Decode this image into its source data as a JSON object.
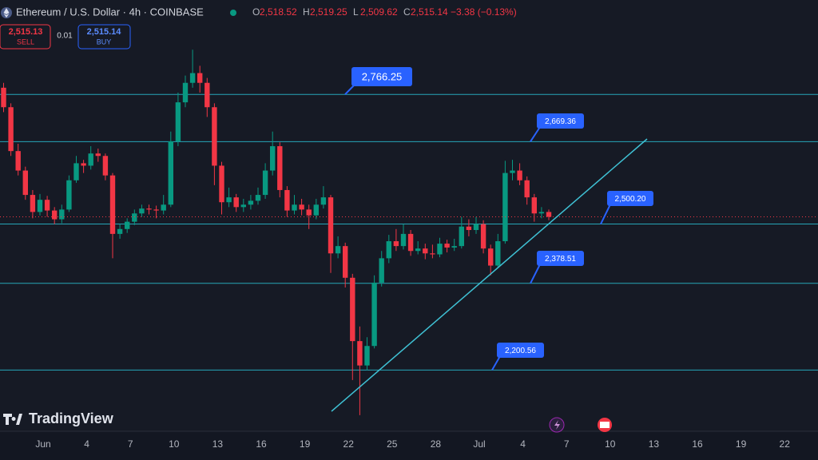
{
  "header": {
    "symbol": "Ethereum / U.S. Dollar · 4h · COINBASE",
    "ohlc": [
      {
        "label": "O",
        "value": "2,518.52"
      },
      {
        "label": "H",
        "value": "2,519.25"
      },
      {
        "label": "L",
        "value": "2,509.62"
      },
      {
        "label": "C",
        "value": "2,515.14"
      }
    ],
    "change": "−3.38 (−0.13%)"
  },
  "trade": {
    "sell_price": "2,515.13",
    "sell_label": "SELL",
    "spread": "0.01",
    "buy_price": "2,515.14",
    "buy_label": "BUY"
  },
  "branding": "TradingView",
  "chart_data": {
    "type": "candlestick",
    "ylim": [
      2075,
      2960
    ],
    "up_color": "#089981",
    "down_color": "#f23645",
    "level_color": "#26a6b8",
    "categories": [
      "Jun",
      "4",
      "7",
      "10",
      "13",
      "16",
      "19",
      "22",
      "25",
      "28",
      "Jul",
      "4",
      "7",
      "10",
      "13",
      "16",
      "19",
      "22"
    ],
    "levels": [
      {
        "value": 2766.25,
        "label": "2,766.25"
      },
      {
        "value": 2669.36,
        "label": "2,669.36"
      },
      {
        "value": 2500.2,
        "label": "2,500.20"
      },
      {
        "value": 2378.51,
        "label": "2,378.51"
      },
      {
        "value": 2200.56,
        "label": "2,200.56"
      }
    ],
    "candles": [
      [
        2780,
        2790,
        2730,
        2740
      ],
      [
        2740,
        2748,
        2640,
        2650
      ],
      [
        2650,
        2665,
        2600,
        2610
      ],
      [
        2610,
        2618,
        2550,
        2560
      ],
      [
        2560,
        2570,
        2512,
        2525
      ],
      [
        2525,
        2562,
        2518,
        2550
      ],
      [
        2550,
        2558,
        2515,
        2528
      ],
      [
        2528,
        2535,
        2500,
        2510
      ],
      [
        2510,
        2540,
        2502,
        2530
      ],
      [
        2530,
        2600,
        2525,
        2590
      ],
      [
        2590,
        2640,
        2585,
        2625
      ],
      [
        2625,
        2632,
        2605,
        2620
      ],
      [
        2620,
        2660,
        2612,
        2645
      ],
      [
        2645,
        2655,
        2628,
        2640
      ],
      [
        2640,
        2645,
        2590,
        2600
      ],
      [
        2600,
        2605,
        2430,
        2480
      ],
      [
        2480,
        2500,
        2470,
        2490
      ],
      [
        2490,
        2512,
        2482,
        2505
      ],
      [
        2505,
        2530,
        2498,
        2522
      ],
      [
        2522,
        2540,
        2515,
        2532
      ],
      [
        2532,
        2540,
        2520,
        2530
      ],
      [
        2530,
        2538,
        2512,
        2528
      ],
      [
        2528,
        2560,
        2520,
        2540
      ],
      [
        2540,
        2690,
        2535,
        2670
      ],
      [
        2670,
        2770,
        2660,
        2750
      ],
      [
        2750,
        2805,
        2740,
        2790
      ],
      [
        2790,
        2858,
        2780,
        2810
      ],
      [
        2810,
        2825,
        2770,
        2790
      ],
      [
        2790,
        2800,
        2720,
        2740
      ],
      [
        2740,
        2748,
        2580,
        2620
      ],
      [
        2620,
        2628,
        2520,
        2545
      ],
      [
        2545,
        2575,
        2535,
        2555
      ],
      [
        2555,
        2562,
        2525,
        2535
      ],
      [
        2535,
        2552,
        2525,
        2540
      ],
      [
        2540,
        2560,
        2530,
        2548
      ],
      [
        2548,
        2575,
        2540,
        2560
      ],
      [
        2560,
        2625,
        2552,
        2610
      ],
      [
        2610,
        2690,
        2600,
        2660
      ],
      [
        2660,
        2668,
        2555,
        2570
      ],
      [
        2570,
        2578,
        2515,
        2528
      ],
      [
        2528,
        2560,
        2520,
        2540
      ],
      [
        2540,
        2552,
        2518,
        2530
      ],
      [
        2530,
        2540,
        2490,
        2518
      ],
      [
        2518,
        2552,
        2510,
        2540
      ],
      [
        2540,
        2578,
        2532,
        2555
      ],
      [
        2555,
        2560,
        2400,
        2440
      ],
      [
        2440,
        2475,
        2430,
        2455
      ],
      [
        2455,
        2462,
        2370,
        2390
      ],
      [
        2390,
        2398,
        2180,
        2260
      ],
      [
        2260,
        2290,
        2108,
        2210
      ],
      [
        2210,
        2268,
        2200,
        2250
      ],
      [
        2250,
        2395,
        2245,
        2380
      ],
      [
        2380,
        2445,
        2372,
        2430
      ],
      [
        2430,
        2478,
        2420,
        2465
      ],
      [
        2465,
        2490,
        2445,
        2455
      ],
      [
        2455,
        2500,
        2448,
        2480
      ],
      [
        2480,
        2488,
        2435,
        2445
      ],
      [
        2445,
        2465,
        2438,
        2450
      ],
      [
        2450,
        2460,
        2428,
        2440
      ],
      [
        2440,
        2458,
        2430,
        2438
      ],
      [
        2438,
        2472,
        2432,
        2460
      ],
      [
        2460,
        2468,
        2442,
        2452
      ],
      [
        2452,
        2470,
        2445,
        2455
      ],
      [
        2455,
        2515,
        2450,
        2495
      ],
      [
        2495,
        2510,
        2475,
        2488
      ],
      [
        2488,
        2515,
        2480,
        2500
      ],
      [
        2500,
        2508,
        2440,
        2450
      ],
      [
        2450,
        2458,
        2395,
        2415
      ],
      [
        2415,
        2480,
        2410,
        2465
      ],
      [
        2465,
        2630,
        2460,
        2605
      ],
      [
        2605,
        2632,
        2590,
        2610
      ],
      [
        2610,
        2625,
        2580,
        2590
      ],
      [
        2590,
        2598,
        2540,
        2555
      ],
      [
        2555,
        2562,
        2505,
        2522
      ],
      [
        2522,
        2535,
        2512,
        2525
      ],
      [
        2525,
        2530,
        2508,
        2515
      ]
    ]
  }
}
